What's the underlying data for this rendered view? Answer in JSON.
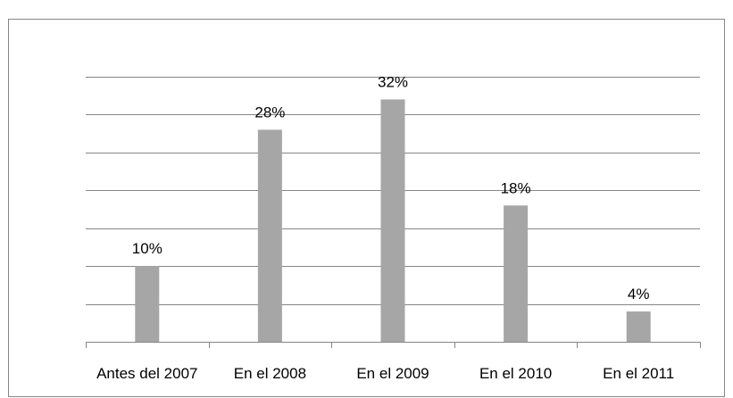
{
  "chart_data": {
    "type": "bar",
    "categories": [
      "Antes del 2007",
      "En el 2008",
      "En el 2009",
      "En el 2010",
      "En el 2011"
    ],
    "values": [
      10,
      28,
      32,
      18,
      4
    ],
    "value_labels": [
      "10%",
      "28%",
      "32%",
      "18%",
      "4%"
    ],
    "color": "#a6a6a6",
    "ylim": [
      0,
      35
    ],
    "yticks": [
      0,
      5,
      10,
      15,
      20,
      25,
      30,
      35
    ],
    "grid": true
  }
}
